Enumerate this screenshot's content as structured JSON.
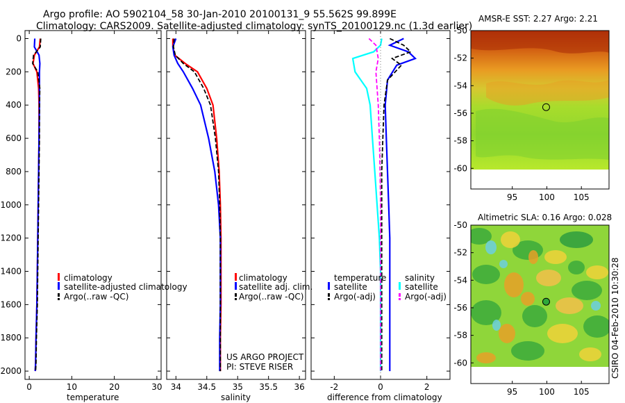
{
  "header": {
    "line1": "Argo profile: AO 5902104_58 30-Jan-2010 20100131_9 55.562S 99.899E",
    "line2": "Climatology: CARS2009. Satellite-adjusted climatology: synTS_20100129.nc (1.3d earlier)"
  },
  "side_label": "CSIRO 04-Feb-2010 10:30:28",
  "colors": {
    "climatology": "#ff0000",
    "satellite": "#0000ff",
    "argo": "#000000",
    "salinity_satellite": "#00ffff",
    "salinity_argo": "#ff00ff",
    "map_mask": "#ffffff"
  },
  "chart_data": [
    {
      "type": "line",
      "panel": "temperature",
      "xlabel": "temperature",
      "ylabel": "",
      "xlim": [
        -1,
        31
      ],
      "ylim": [
        2050,
        0
      ],
      "y_reversed": true,
      "xticks": [
        0,
        10,
        20,
        30
      ],
      "yticks": [
        0,
        200,
        400,
        600,
        800,
        1000,
        1200,
        1400,
        1600,
        1800,
        2000
      ],
      "legend": [
        "climatology",
        "satellite-adjusted climatology",
        "Argo(..raw -QC)"
      ],
      "series": [
        {
          "name": "climatology",
          "style": "solid",
          "color": "#ff0000",
          "x": [
            2.6,
            2.4,
            1.2,
            0.9,
            1.8,
            2.2,
            2.3,
            2.3,
            2.2,
            2.1,
            2.0,
            1.9,
            1.8,
            1.6,
            1.5,
            1.4
          ],
          "y": [
            0,
            50,
            100,
            150,
            200,
            300,
            400,
            600,
            800,
            1000,
            1200,
            1400,
            1600,
            1800,
            1950,
            2000
          ]
        },
        {
          "name": "satellite-adjusted climatology",
          "style": "solid",
          "color": "#0000ff",
          "x": [
            1.3,
            1.2,
            2.3,
            2.5,
            2.4,
            2.4,
            2.4,
            2.3,
            2.2,
            2.1,
            2.0,
            1.9,
            1.8,
            1.6,
            1.5,
            1.4
          ],
          "y": [
            0,
            50,
            100,
            150,
            200,
            300,
            400,
            600,
            800,
            1000,
            1200,
            1400,
            1600,
            1800,
            1950,
            2000
          ]
        },
        {
          "name": "Argo(..raw -QC)",
          "style": "dashed",
          "color": "#000000",
          "x": [
            2.7,
            2.6,
            1.0,
            0.8,
            2.0,
            2.5,
            2.4,
            2.4,
            2.3,
            2.2,
            2.1,
            2.0,
            1.9,
            1.7,
            1.6,
            1.5
          ],
          "y": [
            0,
            50,
            100,
            150,
            200,
            300,
            400,
            600,
            800,
            1000,
            1200,
            1400,
            1600,
            1800,
            1950,
            2000
          ]
        }
      ]
    },
    {
      "type": "line",
      "panel": "salinity",
      "xlabel": "salinity",
      "ylabel": "",
      "xlim": [
        33.85,
        36.1
      ],
      "ylim": [
        2050,
        0
      ],
      "y_reversed": true,
      "xticks": [
        34,
        34.5,
        35,
        35.5,
        36
      ],
      "legend": [
        "climatology",
        "satellite adj. clim.",
        "Argo(..raw -QC)"
      ],
      "series": [
        {
          "name": "climatology",
          "style": "solid",
          "color": "#ff0000",
          "x": [
            33.95,
            33.95,
            33.98,
            34.15,
            34.35,
            34.5,
            34.6,
            34.66,
            34.7,
            34.72,
            34.73,
            34.73,
            34.73,
            34.72,
            34.72
          ],
          "y": [
            0,
            50,
            100,
            150,
            200,
            300,
            400,
            600,
            800,
            1000,
            1200,
            1400,
            1600,
            1800,
            2000
          ]
        },
        {
          "name": "satellite adj. clim.",
          "style": "solid",
          "color": "#0000ff",
          "x": [
            34.0,
            33.95,
            33.97,
            34.03,
            34.12,
            34.27,
            34.4,
            34.53,
            34.63,
            34.69,
            34.72,
            34.72,
            34.72,
            34.71,
            34.71
          ],
          "y": [
            0,
            50,
            100,
            150,
            200,
            300,
            400,
            600,
            800,
            1000,
            1200,
            1400,
            1600,
            1800,
            2000
          ]
        },
        {
          "name": "Argo(..raw -QC)",
          "style": "dashed",
          "color": "#000000",
          "x": [
            33.97,
            33.96,
            33.99,
            34.12,
            34.3,
            34.45,
            34.56,
            34.64,
            34.69,
            34.71,
            34.72,
            34.72,
            34.72,
            34.72,
            34.72
          ],
          "y": [
            0,
            50,
            100,
            150,
            200,
            300,
            400,
            600,
            800,
            1000,
            1200,
            1400,
            1600,
            1800,
            2000
          ]
        }
      ]
    },
    {
      "type": "line",
      "panel": "difference",
      "xlabel": "difference from climatology",
      "ylabel": "",
      "xlim": [
        -3,
        3
      ],
      "ylim": [
        2050,
        0
      ],
      "y_reversed": true,
      "xticks": [
        -2,
        0,
        2
      ],
      "legend": [
        {
          "group": "temperature",
          "entries": [
            "satellite",
            "Argo(-adj)"
          ]
        },
        {
          "group": "salinity",
          "entries": [
            "satellite",
            "Argo(-adj)"
          ]
        }
      ],
      "series": [
        {
          "name": "temperature satellite",
          "style": "solid",
          "color": "#0000ff",
          "x": [
            1.0,
            0.4,
            1.2,
            1.5,
            0.7,
            0.3,
            0.2,
            0.25,
            0.3,
            0.35,
            0.4,
            0.4,
            0.4,
            0.4,
            0.4
          ],
          "y": [
            0,
            40,
            80,
            120,
            160,
            250,
            400,
            600,
            800,
            1000,
            1200,
            1400,
            1600,
            1800,
            2000
          ]
        },
        {
          "name": "temperature Argo(-adj)",
          "style": "dashed",
          "color": "#000000",
          "x": [
            0.4,
            1.0,
            1.3,
            0.5,
            0.9,
            0.3,
            0.15,
            0.1,
            0.05,
            0.05,
            0.05,
            0.05,
            0.05,
            0.05,
            0.05
          ],
          "y": [
            0,
            40,
            80,
            120,
            160,
            250,
            400,
            600,
            800,
            1000,
            1200,
            1400,
            1600,
            1800,
            2000
          ]
        },
        {
          "name": "salinity satellite",
          "style": "solid",
          "color": "#00ffff",
          "x": [
            0.05,
            0.0,
            -0.3,
            -1.2,
            -1.1,
            -0.6,
            -0.45,
            -0.35,
            -0.25,
            -0.15,
            -0.05,
            0.0,
            0.0,
            0.0,
            0.0
          ],
          "y": [
            0,
            40,
            80,
            120,
            200,
            300,
            400,
            600,
            800,
            1000,
            1200,
            1400,
            1600,
            1800,
            2000
          ]
        },
        {
          "name": "salinity Argo(-adj)",
          "style": "dashed",
          "color": "#ff00ff",
          "x": [
            -0.5,
            -0.2,
            -0.15,
            -0.1,
            -0.2,
            -0.15,
            -0.1,
            -0.05,
            -0.02,
            0.0,
            0.0,
            0.0,
            0.0,
            0.0,
            0.0
          ],
          "y": [
            0,
            40,
            80,
            120,
            200,
            300,
            400,
            600,
            800,
            1000,
            1200,
            1400,
            1600,
            1800,
            2000
          ]
        }
      ]
    },
    {
      "type": "heatmap",
      "panel": "sst_map",
      "title": "AMSR-E SST: 2.27 Argo: 2.21",
      "xlim": [
        89,
        109
      ],
      "ylim": [
        -61.5,
        -50
      ],
      "xticks": [
        95,
        100,
        105
      ],
      "yticks": [
        -50,
        -52,
        -54,
        -56,
        -58,
        -60
      ],
      "float_position": {
        "lon": 99.9,
        "lat": -55.56
      },
      "float_marker": "open circle",
      "data_extent_lat": [
        -60,
        -50
      ],
      "colormap": "orange (north, warm) to green/yellow (south)"
    },
    {
      "type": "heatmap",
      "panel": "sla_map",
      "title": "Altimetric SLA: 0.16 Argo: 0.028",
      "xlim": [
        89,
        109
      ],
      "ylim": [
        -61.5,
        -50
      ],
      "xticks": [
        95,
        100,
        105
      ],
      "yticks": [
        -50,
        -52,
        -54,
        -56,
        -58,
        -60
      ],
      "float_position": {
        "lon": 99.9,
        "lat": -55.56
      },
      "float_marker": "filled green circle",
      "data_extent_lat": [
        -60,
        -50
      ],
      "colormap": "patchy green, yellow, orange and cyan blobs"
    }
  ],
  "annotations": {
    "project": "US ARGO PROJECT",
    "pi": "PI: STEVE RISER"
  }
}
